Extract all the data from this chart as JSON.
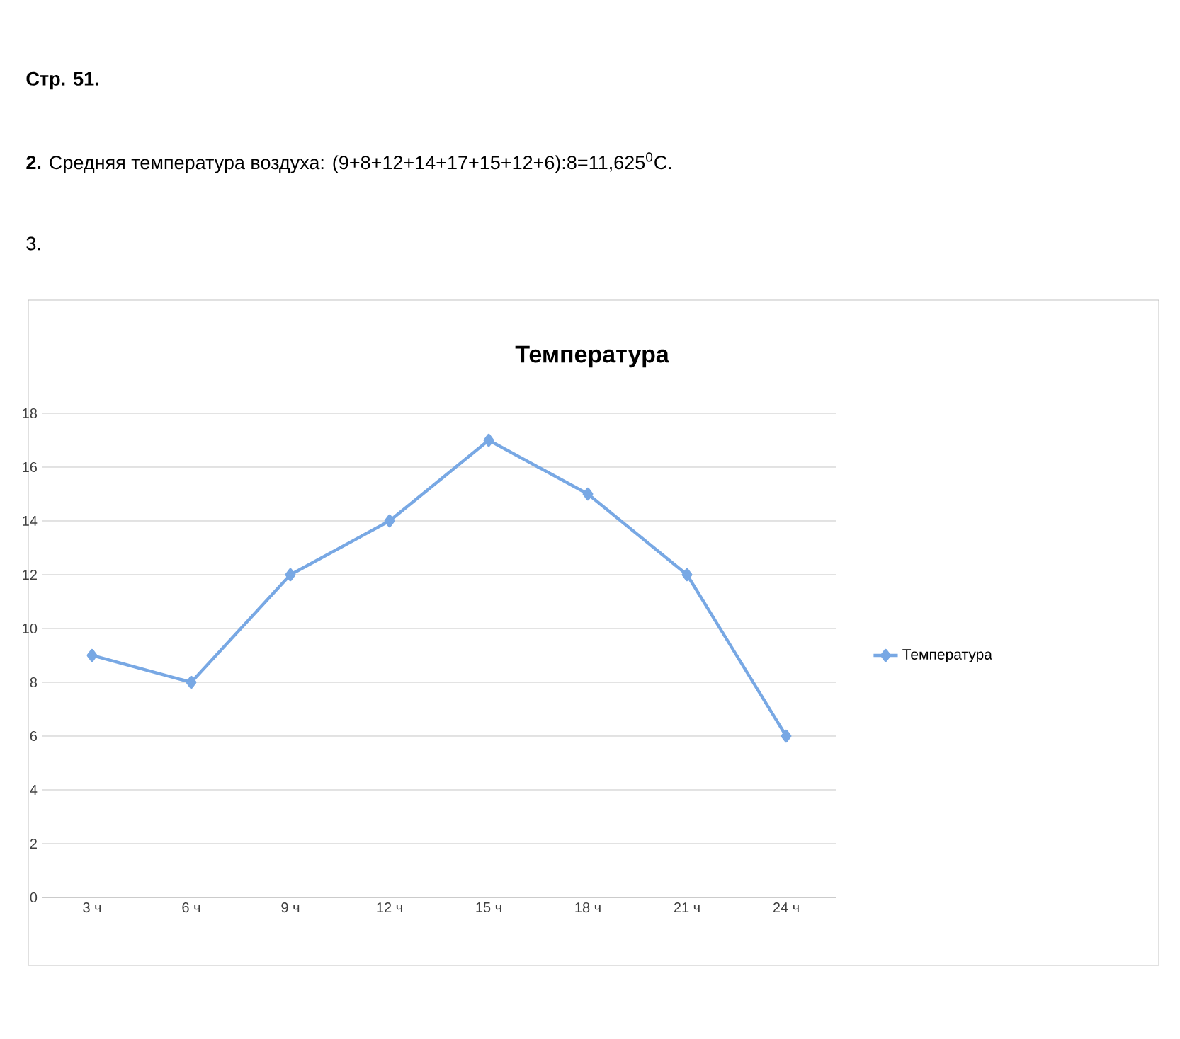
{
  "chart_data": {
    "type": "line",
    "title": "Температура",
    "annotations": [
      "Стр. 51.",
      "**2.** Средняя температура воздуха: (9+8+12+14+17+15+12+6):8=11,625$^{0}$C.",
      "3."
    ],
    "categories": [
      "3 ч",
      "6 ч",
      "9 ч",
      "12 ч",
      "15 ч",
      "18 ч",
      "21 ч",
      "24 ч"
    ],
    "series": [
      {
        "name": "Температура",
        "color": "#78a8e4",
        "values": [
          9,
          8,
          12,
          14,
          17,
          15,
          12,
          6
        ]
      }
    ],
    "ylim": [
      0,
      18
    ],
    "yticks": [
      0,
      2,
      4,
      6,
      8,
      10,
      12,
      14,
      16,
      18
    ],
    "grid": "y",
    "legend": "right",
    "marker": "diamond",
    "line_style": "solid"
  }
}
